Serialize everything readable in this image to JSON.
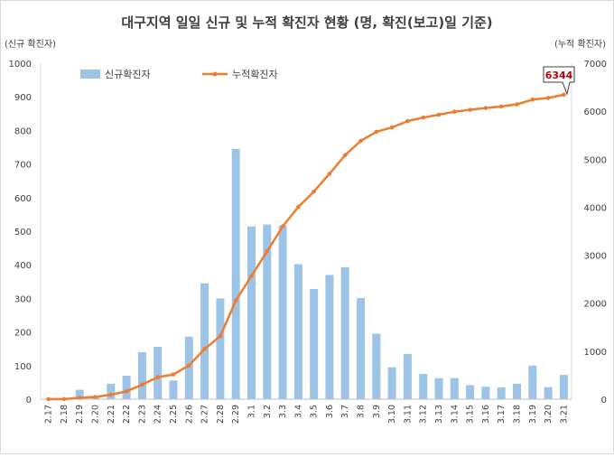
{
  "chart_data": {
    "type": "bar",
    "title": "대구지역 일일 신규 및 누적 확진자 현황 (명, 확진(보고)일 기준)",
    "ylabel_left": "(신규 확진자)",
    "ylabel_right": "(누적 확진자)",
    "ylim_left": [
      0,
      1000
    ],
    "ylim_right": [
      0,
      7000
    ],
    "yticks_left": [
      0,
      100,
      200,
      300,
      400,
      500,
      600,
      700,
      800,
      900,
      1000
    ],
    "yticks_right": [
      0,
      1000,
      2000,
      3000,
      4000,
      5000,
      6000,
      7000
    ],
    "grid": false,
    "legend_position": "top-left",
    "categories": [
      "2.17",
      "2.18",
      "2.19",
      "2.20",
      "2.21",
      "2.22",
      "2.23",
      "2.24",
      "2.25",
      "2.26",
      "2.27",
      "2.28",
      "2.29",
      "3.1",
      "3.2",
      "3.3",
      "3.4",
      "3.5",
      "3.6",
      "3.7",
      "3.8",
      "3.9",
      "3.10",
      "3.11",
      "3.12",
      "3.13",
      "3.14",
      "3.15",
      "3.16",
      "3.17",
      "3.18",
      "3.19",
      "3.20",
      "3.21"
    ],
    "series": [
      {
        "name": "신규확진자",
        "type": "bar",
        "axis": "left",
        "color": "#9dc3e6",
        "values": [
          1,
          0,
          28,
          10,
          46,
          70,
          140,
          156,
          56,
          186,
          345,
          300,
          745,
          514,
          520,
          517,
          402,
          328,
          370,
          393,
          301,
          195,
          95,
          135,
          75,
          63,
          63,
          42,
          37,
          35,
          46,
          100,
          36,
          72
        ]
      },
      {
        "name": "누적확진자",
        "type": "line",
        "axis": "right",
        "color": "#ed7d31",
        "values": [
          1,
          1,
          29,
          47,
          93,
          163,
          303,
          459,
          515,
          701,
          1046,
          1314,
          2055,
          2569,
          3081,
          3600,
          4006,
          4327,
          4694,
          5084,
          5381,
          5571,
          5663,
          5794,
          5867,
          5928,
          5990,
          6031,
          6066,
          6098,
          6144,
          6241,
          6275,
          6344
        ]
      }
    ],
    "annotations": [
      {
        "text": "6344",
        "series": "누적확진자",
        "category": "3.21",
        "color": "#c00000"
      }
    ]
  }
}
